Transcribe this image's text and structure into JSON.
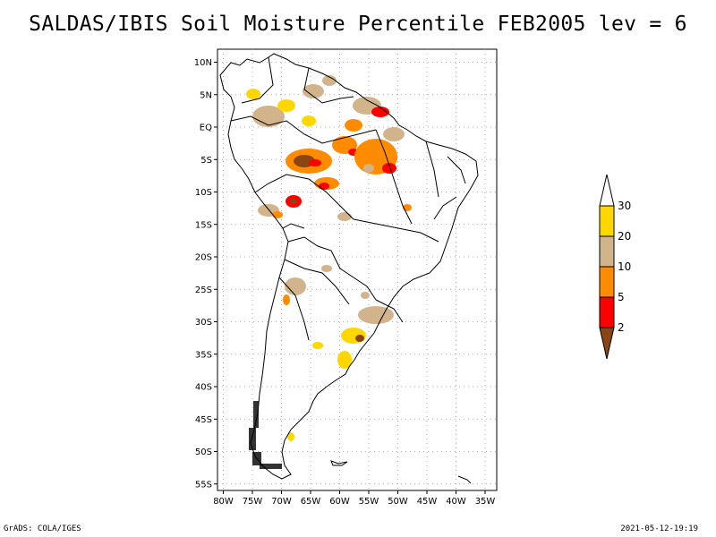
{
  "title": "SALDAS/IBIS Soil Moisture Percentile FEB2005 lev = 6",
  "map": {
    "lat_range": [
      -56,
      12
    ],
    "lon_range": [
      -81,
      -33
    ],
    "lat_ticks": [
      {
        "value": 10,
        "label": "10N"
      },
      {
        "value": 5,
        "label": "5N"
      },
      {
        "value": 0,
        "label": "EQ"
      },
      {
        "value": -5,
        "label": "5S"
      },
      {
        "value": -10,
        "label": "10S"
      },
      {
        "value": -15,
        "label": "15S"
      },
      {
        "value": -20,
        "label": "20S"
      },
      {
        "value": -25,
        "label": "25S"
      },
      {
        "value": -30,
        "label": "30S"
      },
      {
        "value": -35,
        "label": "35S"
      },
      {
        "value": -40,
        "label": "40S"
      },
      {
        "value": -45,
        "label": "45S"
      },
      {
        "value": -50,
        "label": "50S"
      },
      {
        "value": -55,
        "label": "55S"
      }
    ],
    "lon_ticks": [
      {
        "value": -80,
        "label": "80W"
      },
      {
        "value": -75,
        "label": "75W"
      },
      {
        "value": -70,
        "label": "70W"
      },
      {
        "value": -65,
        "label": "65W"
      },
      {
        "value": -60,
        "label": "60W"
      },
      {
        "value": -55,
        "label": "55W"
      },
      {
        "value": -50,
        "label": "50W"
      },
      {
        "value": -45,
        "label": "45W"
      },
      {
        "value": -40,
        "label": "40W"
      },
      {
        "value": -35,
        "label": "35W"
      }
    ]
  },
  "legend": {
    "bins": [
      {
        "label": "2",
        "color": "#8b4513"
      },
      {
        "label": "5",
        "color": "#ff0000"
      },
      {
        "label": "10",
        "color": "#ff8c00"
      },
      {
        "label": "20",
        "color": "#d2b48c"
      },
      {
        "label": "30",
        "color": "#ffd700"
      }
    ],
    "top_color": "#ffffff"
  },
  "footer": {
    "left": "GrADS: COLA/IGES",
    "right": "2021-05-12-19:19"
  }
}
